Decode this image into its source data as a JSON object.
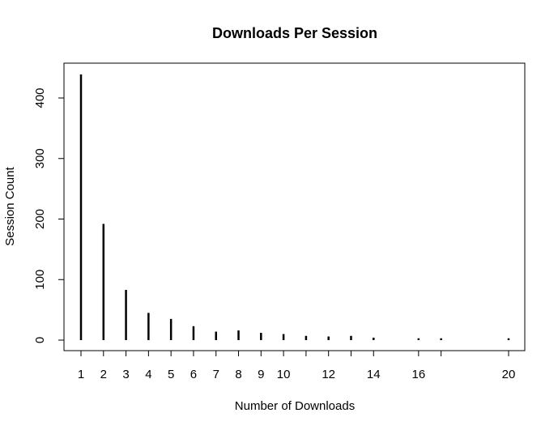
{
  "chart_data": {
    "type": "bar",
    "title": "Downloads Per Session",
    "xlabel": "Number of Downloads",
    "ylabel": "Session Count",
    "xlim": [
      0,
      21
    ],
    "ylim": [
      -5,
      460
    ],
    "x_ticks": [
      1,
      2,
      3,
      4,
      5,
      6,
      7,
      8,
      9,
      10,
      12,
      14,
      16,
      20
    ],
    "x_tick_marks": [
      1,
      2,
      3,
      4,
      5,
      6,
      7,
      8,
      9,
      10,
      11,
      12,
      13,
      14,
      16,
      17,
      20
    ],
    "y_ticks": [
      0,
      100,
      200,
      300,
      400
    ],
    "grid": false,
    "points": [
      {
        "x": 1,
        "y": 439
      },
      {
        "x": 2,
        "y": 192
      },
      {
        "x": 3,
        "y": 83
      },
      {
        "x": 4,
        "y": 45
      },
      {
        "x": 5,
        "y": 35
      },
      {
        "x": 6,
        "y": 23
      },
      {
        "x": 7,
        "y": 14
      },
      {
        "x": 8,
        "y": 16
      },
      {
        "x": 9,
        "y": 12
      },
      {
        "x": 10,
        "y": 10
      },
      {
        "x": 11,
        "y": 7
      },
      {
        "x": 12,
        "y": 6
      },
      {
        "x": 13,
        "y": 7
      },
      {
        "x": 14,
        "y": 4
      },
      {
        "x": 16,
        "y": 3
      },
      {
        "x": 17,
        "y": 3
      },
      {
        "x": 20,
        "y": 3
      }
    ]
  }
}
